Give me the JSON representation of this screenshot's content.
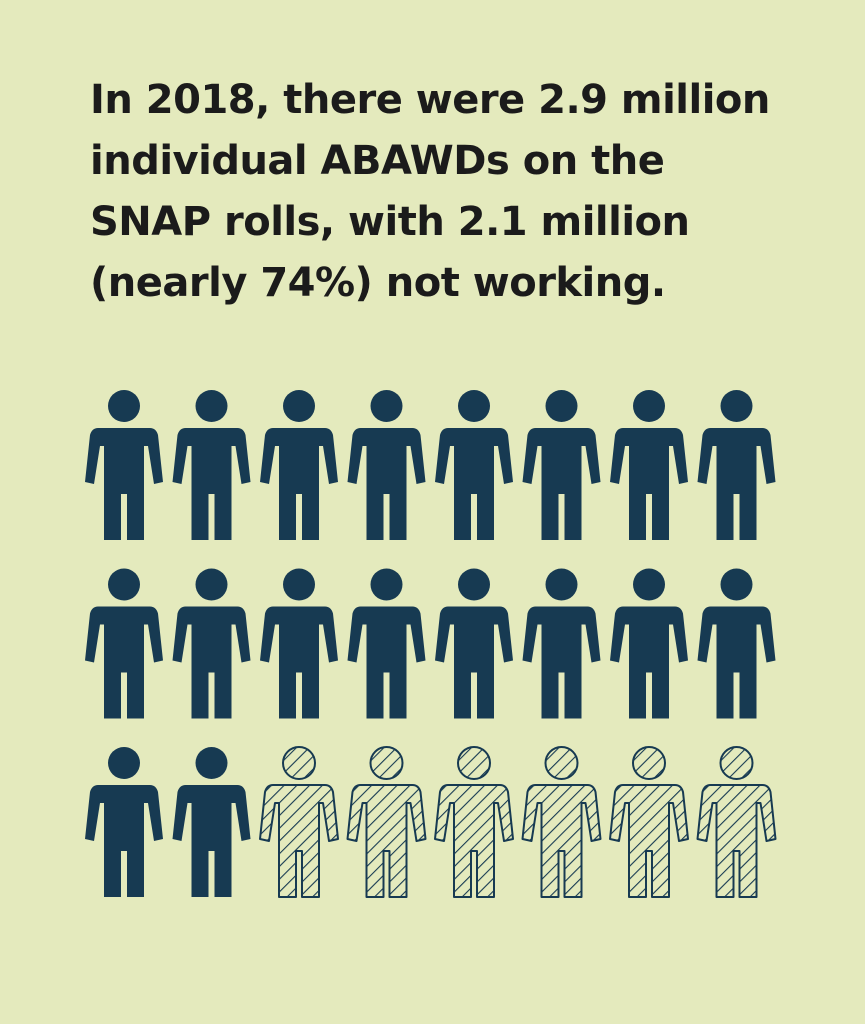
{
  "colors": {
    "background": "#e4eabd",
    "text": "#1b1b1b",
    "figure": "#173a52"
  },
  "headline": "In 2018, there were 2.9 million\nindividual ABAWDs on the\nSNAP rolls, with 2.1 million\n(nearly 74%) not working.",
  "chart_data": {
    "type": "pictogram",
    "unit_icon": "person-icon",
    "rows": 3,
    "columns": 8,
    "total_icons": 24,
    "solid_icons": 18,
    "hatched_icons": 6,
    "solid_fraction": 0.75
  }
}
